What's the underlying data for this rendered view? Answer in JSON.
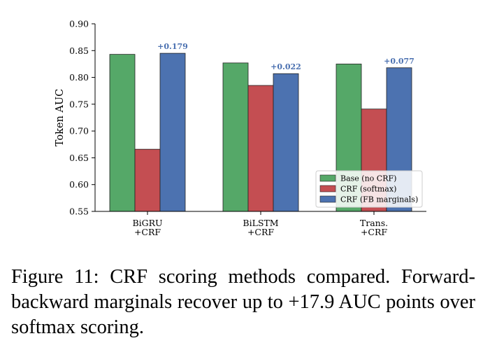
{
  "chart_data": {
    "type": "bar",
    "categories": [
      [
        "BiGRU",
        "+CRF"
      ],
      [
        "BiLSTM",
        "+CRF"
      ],
      [
        "Trans.",
        "+CRF"
      ]
    ],
    "series": [
      {
        "name": "Base (no CRF)",
        "values": [
          0.843,
          0.827,
          0.825
        ],
        "color": "#55a868"
      },
      {
        "name": "CRF (softmax)",
        "values": [
          0.666,
          0.785,
          0.741
        ],
        "color": "#c44e52"
      },
      {
        "name": "CRF (FB marginals)",
        "values": [
          0.845,
          0.807,
          0.818
        ],
        "color": "#4c72b0"
      }
    ],
    "annotations": [
      "+0.179",
      "+0.022",
      "+0.077"
    ],
    "ylabel": "Token AUC",
    "ylim": [
      0.55,
      0.9
    ],
    "yticks": [
      "0.55",
      "0.60",
      "0.65",
      "0.70",
      "0.75",
      "0.80",
      "0.85",
      "0.90"
    ],
    "legend_position": "lower-right",
    "grid": false
  },
  "caption": "Figure 11: CRF scoring methods compared. Forward-backward marginals recover up to +17.9 AUC points over softmax scoring."
}
